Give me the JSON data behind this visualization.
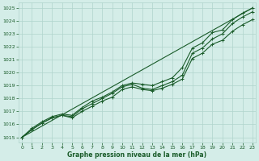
{
  "bg_color": "#d4ede8",
  "grid_color": "#b0d4cc",
  "line_color": "#1a5c2a",
  "marker_color": "#1a5c2a",
  "xlabel": "Graphe pression niveau de la mer (hPa)",
  "xlabel_color": "#1a5c2a",
  "ylabel_ticks": [
    1015,
    1016,
    1017,
    1018,
    1019,
    1020,
    1021,
    1022,
    1023,
    1024,
    1025
  ],
  "xlim": [
    -0.3,
    23.3
  ],
  "ylim": [
    1014.6,
    1025.4
  ],
  "xticks": [
    0,
    1,
    2,
    3,
    4,
    5,
    6,
    7,
    8,
    9,
    10,
    11,
    12,
    13,
    14,
    15,
    16,
    17,
    18,
    19,
    20,
    21,
    22,
    23
  ],
  "series": [
    [
      1015.0,
      1015.6,
      1016.1,
      1016.5,
      1016.7,
      1016.6,
      1017.2,
      1017.6,
      1018.0,
      1018.4,
      1018.9,
      1019.1,
      1018.8,
      1018.7,
      1019.0,
      1019.3,
      1019.8,
      1021.5,
      1021.9,
      1022.6,
      1023.0,
      1023.8,
      1024.3,
      1024.7
    ],
    [
      1015.0,
      1015.7,
      1016.2,
      1016.6,
      1016.8,
      1016.7,
      1017.3,
      1017.8,
      1018.1,
      1018.5,
      1019.0,
      1019.2,
      1019.1,
      1019.0,
      1019.3,
      1019.6,
      1020.4,
      1021.9,
      1022.3,
      1023.1,
      1023.3,
      1024.1,
      1024.6,
      1025.0
    ],
    [
      1015.0,
      1015.6,
      1016.1,
      1016.5,
      1016.7,
      1016.5,
      1017.0,
      1017.4,
      1017.8,
      1018.1,
      1018.7,
      1018.9,
      1018.7,
      1018.6,
      1018.8,
      1019.1,
      1019.5,
      1021.1,
      1021.5,
      1022.2,
      1022.5,
      1023.2,
      1023.7,
      1024.1
    ]
  ],
  "straight_line": [
    1015.0,
    1025.0
  ]
}
